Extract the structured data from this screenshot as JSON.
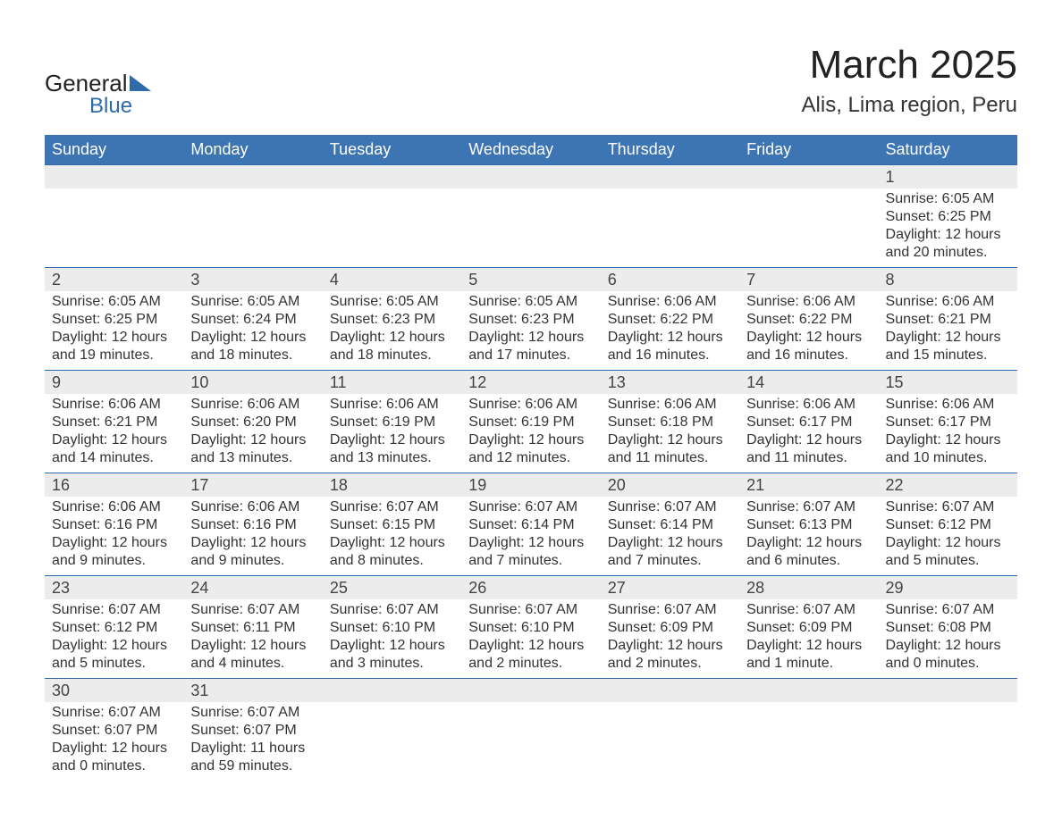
{
  "brand": {
    "word1": "General",
    "word2": "Blue",
    "accent_color": "#2f6bab"
  },
  "title": "March 2025",
  "location": "Alis, Lima region, Peru",
  "colors": {
    "header_bg": "#3d74b3",
    "header_text": "#ffffff",
    "daynum_bg": "#ececec",
    "row_divider": "#2f6bab",
    "body_text": "#333333",
    "page_bg": "#ffffff"
  },
  "typography": {
    "title_fontsize": 44,
    "location_fontsize": 24,
    "dayhead_fontsize": 18,
    "daynum_fontsize": 18,
    "cell_fontsize": 16
  },
  "day_labels": [
    "Sunday",
    "Monday",
    "Tuesday",
    "Wednesday",
    "Thursday",
    "Friday",
    "Saturday"
  ],
  "weeks": [
    [
      {
        "n": "",
        "sunrise": "",
        "sunset": "",
        "daylight": ""
      },
      {
        "n": "",
        "sunrise": "",
        "sunset": "",
        "daylight": ""
      },
      {
        "n": "",
        "sunrise": "",
        "sunset": "",
        "daylight": ""
      },
      {
        "n": "",
        "sunrise": "",
        "sunset": "",
        "daylight": ""
      },
      {
        "n": "",
        "sunrise": "",
        "sunset": "",
        "daylight": ""
      },
      {
        "n": "",
        "sunrise": "",
        "sunset": "",
        "daylight": ""
      },
      {
        "n": "1",
        "sunrise": "Sunrise: 6:05 AM",
        "sunset": "Sunset: 6:25 PM",
        "daylight": "Daylight: 12 hours and 20 minutes."
      }
    ],
    [
      {
        "n": "2",
        "sunrise": "Sunrise: 6:05 AM",
        "sunset": "Sunset: 6:25 PM",
        "daylight": "Daylight: 12 hours and 19 minutes."
      },
      {
        "n": "3",
        "sunrise": "Sunrise: 6:05 AM",
        "sunset": "Sunset: 6:24 PM",
        "daylight": "Daylight: 12 hours and 18 minutes."
      },
      {
        "n": "4",
        "sunrise": "Sunrise: 6:05 AM",
        "sunset": "Sunset: 6:23 PM",
        "daylight": "Daylight: 12 hours and 18 minutes."
      },
      {
        "n": "5",
        "sunrise": "Sunrise: 6:05 AM",
        "sunset": "Sunset: 6:23 PM",
        "daylight": "Daylight: 12 hours and 17 minutes."
      },
      {
        "n": "6",
        "sunrise": "Sunrise: 6:06 AM",
        "sunset": "Sunset: 6:22 PM",
        "daylight": "Daylight: 12 hours and 16 minutes."
      },
      {
        "n": "7",
        "sunrise": "Sunrise: 6:06 AM",
        "sunset": "Sunset: 6:22 PM",
        "daylight": "Daylight: 12 hours and 16 minutes."
      },
      {
        "n": "8",
        "sunrise": "Sunrise: 6:06 AM",
        "sunset": "Sunset: 6:21 PM",
        "daylight": "Daylight: 12 hours and 15 minutes."
      }
    ],
    [
      {
        "n": "9",
        "sunrise": "Sunrise: 6:06 AM",
        "sunset": "Sunset: 6:21 PM",
        "daylight": "Daylight: 12 hours and 14 minutes."
      },
      {
        "n": "10",
        "sunrise": "Sunrise: 6:06 AM",
        "sunset": "Sunset: 6:20 PM",
        "daylight": "Daylight: 12 hours and 13 minutes."
      },
      {
        "n": "11",
        "sunrise": "Sunrise: 6:06 AM",
        "sunset": "Sunset: 6:19 PM",
        "daylight": "Daylight: 12 hours and 13 minutes."
      },
      {
        "n": "12",
        "sunrise": "Sunrise: 6:06 AM",
        "sunset": "Sunset: 6:19 PM",
        "daylight": "Daylight: 12 hours and 12 minutes."
      },
      {
        "n": "13",
        "sunrise": "Sunrise: 6:06 AM",
        "sunset": "Sunset: 6:18 PM",
        "daylight": "Daylight: 12 hours and 11 minutes."
      },
      {
        "n": "14",
        "sunrise": "Sunrise: 6:06 AM",
        "sunset": "Sunset: 6:17 PM",
        "daylight": "Daylight: 12 hours and 11 minutes."
      },
      {
        "n": "15",
        "sunrise": "Sunrise: 6:06 AM",
        "sunset": "Sunset: 6:17 PM",
        "daylight": "Daylight: 12 hours and 10 minutes."
      }
    ],
    [
      {
        "n": "16",
        "sunrise": "Sunrise: 6:06 AM",
        "sunset": "Sunset: 6:16 PM",
        "daylight": "Daylight: 12 hours and 9 minutes."
      },
      {
        "n": "17",
        "sunrise": "Sunrise: 6:06 AM",
        "sunset": "Sunset: 6:16 PM",
        "daylight": "Daylight: 12 hours and 9 minutes."
      },
      {
        "n": "18",
        "sunrise": "Sunrise: 6:07 AM",
        "sunset": "Sunset: 6:15 PM",
        "daylight": "Daylight: 12 hours and 8 minutes."
      },
      {
        "n": "19",
        "sunrise": "Sunrise: 6:07 AM",
        "sunset": "Sunset: 6:14 PM",
        "daylight": "Daylight: 12 hours and 7 minutes."
      },
      {
        "n": "20",
        "sunrise": "Sunrise: 6:07 AM",
        "sunset": "Sunset: 6:14 PM",
        "daylight": "Daylight: 12 hours and 7 minutes."
      },
      {
        "n": "21",
        "sunrise": "Sunrise: 6:07 AM",
        "sunset": "Sunset: 6:13 PM",
        "daylight": "Daylight: 12 hours and 6 minutes."
      },
      {
        "n": "22",
        "sunrise": "Sunrise: 6:07 AM",
        "sunset": "Sunset: 6:12 PM",
        "daylight": "Daylight: 12 hours and 5 minutes."
      }
    ],
    [
      {
        "n": "23",
        "sunrise": "Sunrise: 6:07 AM",
        "sunset": "Sunset: 6:12 PM",
        "daylight": "Daylight: 12 hours and 5 minutes."
      },
      {
        "n": "24",
        "sunrise": "Sunrise: 6:07 AM",
        "sunset": "Sunset: 6:11 PM",
        "daylight": "Daylight: 12 hours and 4 minutes."
      },
      {
        "n": "25",
        "sunrise": "Sunrise: 6:07 AM",
        "sunset": "Sunset: 6:10 PM",
        "daylight": "Daylight: 12 hours and 3 minutes."
      },
      {
        "n": "26",
        "sunrise": "Sunrise: 6:07 AM",
        "sunset": "Sunset: 6:10 PM",
        "daylight": "Daylight: 12 hours and 2 minutes."
      },
      {
        "n": "27",
        "sunrise": "Sunrise: 6:07 AM",
        "sunset": "Sunset: 6:09 PM",
        "daylight": "Daylight: 12 hours and 2 minutes."
      },
      {
        "n": "28",
        "sunrise": "Sunrise: 6:07 AM",
        "sunset": "Sunset: 6:09 PM",
        "daylight": "Daylight: 12 hours and 1 minute."
      },
      {
        "n": "29",
        "sunrise": "Sunrise: 6:07 AM",
        "sunset": "Sunset: 6:08 PM",
        "daylight": "Daylight: 12 hours and 0 minutes."
      }
    ],
    [
      {
        "n": "30",
        "sunrise": "Sunrise: 6:07 AM",
        "sunset": "Sunset: 6:07 PM",
        "daylight": "Daylight: 12 hours and 0 minutes."
      },
      {
        "n": "31",
        "sunrise": "Sunrise: 6:07 AM",
        "sunset": "Sunset: 6:07 PM",
        "daylight": "Daylight: 11 hours and 59 minutes."
      },
      {
        "n": "",
        "sunrise": "",
        "sunset": "",
        "daylight": ""
      },
      {
        "n": "",
        "sunrise": "",
        "sunset": "",
        "daylight": ""
      },
      {
        "n": "",
        "sunrise": "",
        "sunset": "",
        "daylight": ""
      },
      {
        "n": "",
        "sunrise": "",
        "sunset": "",
        "daylight": ""
      },
      {
        "n": "",
        "sunrise": "",
        "sunset": "",
        "daylight": ""
      }
    ]
  ]
}
